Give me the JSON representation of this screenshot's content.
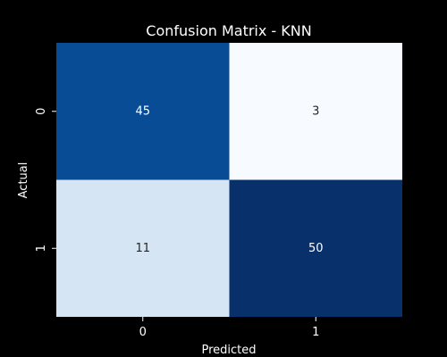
{
  "chart_data": {
    "type": "heatmap",
    "title": "Confusion Matrix - KNN",
    "xlabel": "Predicted",
    "ylabel": "Actual",
    "x_categories": [
      "0",
      "1"
    ],
    "y_categories": [
      "0",
      "1"
    ],
    "values": [
      [
        45,
        3
      ],
      [
        11,
        50
      ]
    ],
    "colormap": "Blues",
    "colorbar": false,
    "background": "#000000",
    "text_color": "#ffffff"
  }
}
